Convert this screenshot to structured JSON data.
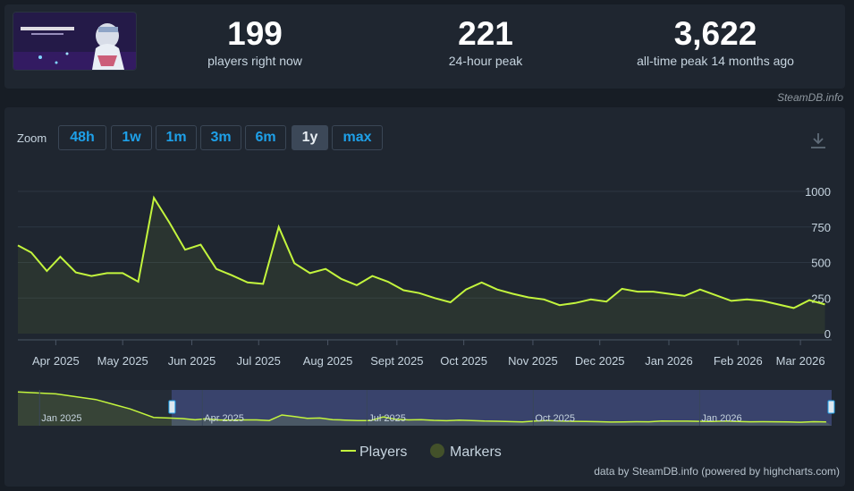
{
  "stats": {
    "current": {
      "value": "199",
      "label": "players right now"
    },
    "peak24": {
      "value": "221",
      "label": "24-hour peak"
    },
    "alltime": {
      "value": "3,622",
      "label": "all-time peak 14 months ago"
    }
  },
  "credit_top": "SteamDB.info",
  "zoom": {
    "label": "Zoom",
    "buttons": [
      "48h",
      "1w",
      "1m",
      "3m",
      "6m",
      "1y",
      "max"
    ],
    "active": "1y"
  },
  "footer_credit": "data by SteamDB.info (powered by highcharts.com)",
  "colors": {
    "series": "#c3f53d",
    "accent": "#1ea0e8",
    "background": "#1f2630"
  },
  "chart_data": {
    "type": "line",
    "series": [
      {
        "name": "Players",
        "color": "#c3f53d"
      }
    ],
    "legend": [
      "Players",
      "Markers"
    ],
    "legend_placement": "bottom-center",
    "ylim": [
      0,
      1000
    ],
    "yticks": [
      "1000",
      "750",
      "500",
      "250",
      "0"
    ],
    "xticks": [
      "Apr 2025",
      "May 2025",
      "Jun 2025",
      "Jul 2025",
      "Aug 2025",
      "Sept 2025",
      "Oct 2025",
      "Nov 2025",
      "Dec 2025",
      "Jan 2026",
      "Feb 2026",
      "Mar 2026"
    ],
    "points": [
      [
        "2025-03-15",
        620
      ],
      [
        "2025-03-21",
        570
      ],
      [
        "2025-03-28",
        440
      ],
      [
        "2025-04-03",
        540
      ],
      [
        "2025-04-10",
        430
      ],
      [
        "2025-04-17",
        405
      ],
      [
        "2025-04-24",
        425
      ],
      [
        "2025-05-01",
        425
      ],
      [
        "2025-05-08",
        365
      ],
      [
        "2025-05-15",
        955
      ],
      [
        "2025-05-22",
        780
      ],
      [
        "2025-05-29",
        590
      ],
      [
        "2025-06-05",
        625
      ],
      [
        "2025-06-12",
        455
      ],
      [
        "2025-06-19",
        410
      ],
      [
        "2025-06-26",
        360
      ],
      [
        "2025-07-03",
        350
      ],
      [
        "2025-07-10",
        750
      ],
      [
        "2025-07-17",
        495
      ],
      [
        "2025-07-24",
        425
      ],
      [
        "2025-07-31",
        455
      ],
      [
        "2025-08-07",
        385
      ],
      [
        "2025-08-14",
        340
      ],
      [
        "2025-08-21",
        405
      ],
      [
        "2025-08-28",
        365
      ],
      [
        "2025-09-04",
        305
      ],
      [
        "2025-09-11",
        285
      ],
      [
        "2025-09-18",
        250
      ],
      [
        "2025-09-25",
        220
      ],
      [
        "2025-10-02",
        310
      ],
      [
        "2025-10-09",
        360
      ],
      [
        "2025-10-16",
        310
      ],
      [
        "2025-10-23",
        280
      ],
      [
        "2025-10-30",
        255
      ],
      [
        "2025-11-06",
        240
      ],
      [
        "2025-11-13",
        200
      ],
      [
        "2025-11-20",
        215
      ],
      [
        "2025-11-27",
        240
      ],
      [
        "2025-12-04",
        225
      ],
      [
        "2025-12-11",
        315
      ],
      [
        "2025-12-18",
        295
      ],
      [
        "2025-12-25",
        295
      ],
      [
        "2026-01-01",
        280
      ],
      [
        "2026-01-08",
        265
      ],
      [
        "2026-01-15",
        310
      ],
      [
        "2026-01-22",
        270
      ],
      [
        "2026-01-29",
        230
      ],
      [
        "2026-02-05",
        240
      ],
      [
        "2026-02-12",
        230
      ],
      [
        "2026-02-19",
        205
      ],
      [
        "2026-02-26",
        180
      ],
      [
        "2026-03-05",
        235
      ],
      [
        "2026-03-12",
        205
      ]
    ],
    "navigator": {
      "labels": [
        "Jan 2025",
        "Apr 2025",
        "Jul 2025",
        "Oct 2025",
        "Jan 2026"
      ]
    }
  }
}
